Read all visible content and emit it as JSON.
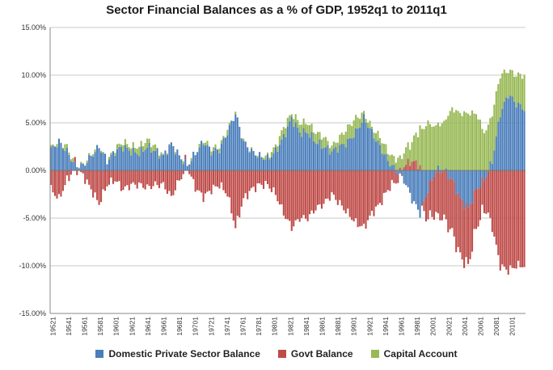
{
  "chart_data": {
    "type": "bar",
    "stacked": true,
    "title": "Sector Financial Balances as a % of GDP, 1952q1 to 2011q1",
    "ylim": [
      -15,
      15
    ],
    "yticks": [
      15,
      10,
      5,
      0,
      -5,
      -10,
      -15
    ],
    "ytick_labels": [
      "15.00%",
      "10.00%",
      "5.00%",
      "0.00%",
      "-5.00%",
      "-10.00%",
      "-15.00%"
    ],
    "x_start": "1952q1",
    "x_end": "2011q1",
    "xtick_labels": [
      "19521",
      "19541",
      "19561",
      "19581",
      "19601",
      "19621",
      "19641",
      "19661",
      "19681",
      "19701",
      "19721",
      "19741",
      "19761",
      "19781",
      "19801",
      "19821",
      "19841",
      "19861",
      "19881",
      "19901",
      "19921",
      "19941",
      "19961",
      "19981",
      "20001",
      "20021",
      "20041",
      "20061",
      "20081",
      "20101"
    ],
    "grid": true,
    "legend_position": "bottom",
    "series": [
      {
        "name": "Domestic Private Sector Balance",
        "color": "#4a7ebb"
      },
      {
        "name": "Govt Balance",
        "color": "#be4b48"
      },
      {
        "name": "Capital Account",
        "color": "#98b954"
      }
    ],
    "annual_private": [
      2.2,
      3.0,
      2.0,
      0.5,
      0.5,
      1.5,
      2.5,
      1.0,
      2.0,
      2.5,
      2.0,
      1.8,
      2.5,
      2.0,
      1.5,
      2.8,
      1.5,
      0.5,
      1.8,
      3.0,
      2.0,
      2.2,
      4.0,
      6.0,
      3.0,
      2.0,
      1.5,
      1.2,
      2.0,
      3.5,
      5.5,
      4.0,
      4.0,
      3.0,
      2.5,
      2.0,
      2.5,
      3.0,
      4.0,
      5.5,
      4.0,
      2.5,
      1.0,
      0.0,
      -1.0,
      -3.0,
      -4.5,
      -2.0,
      0.0,
      0.0,
      -1.0,
      -3.0,
      -4.0,
      -2.0,
      -1.0,
      1.0,
      6.0,
      8.0,
      7.0,
      6.5
    ],
    "annual_govt": [
      -2.0,
      -3.0,
      -1.0,
      0.2,
      -0.5,
      -2.0,
      -3.5,
      -1.5,
      -1.0,
      -2.0,
      -1.5,
      -1.5,
      -1.8,
      -1.5,
      -1.5,
      -2.8,
      -1.0,
      0.3,
      -1.8,
      -2.8,
      -2.0,
      -1.5,
      -2.5,
      -6.0,
      -3.0,
      -2.0,
      -1.5,
      -1.5,
      -2.5,
      -4.5,
      -6.0,
      -5.0,
      -5.0,
      -4.0,
      -3.5,
      -2.5,
      -3.5,
      -4.5,
      -5.5,
      -6.0,
      -4.5,
      -3.5,
      -2.0,
      -1.0,
      0.5,
      1.0,
      0.5,
      -3.0,
      -4.5,
      -5.0,
      -5.5,
      -6.0,
      -6.0,
      -4.0,
      -3.0,
      -6.0,
      -10.0,
      -10.5,
      -10.0,
      -10.0
    ],
    "annual_capital": [
      0.2,
      0.0,
      0.5,
      0.0,
      0.0,
      0.2,
      0.0,
      0.0,
      0.3,
      0.5,
      0.5,
      0.7,
      0.7,
      0.5,
      0.0,
      0.0,
      0.0,
      0.0,
      0.0,
      0.2,
      0.3,
      0.3,
      0.3,
      0.0,
      0.0,
      0.0,
      0.0,
      0.3,
      0.5,
      1.0,
      0.5,
      1.0,
      1.0,
      1.0,
      1.0,
      0.5,
      1.0,
      1.5,
      1.5,
      0.5,
      0.5,
      1.0,
      1.0,
      1.0,
      1.5,
      2.0,
      4.0,
      5.0,
      4.5,
      5.0,
      6.5,
      6.0,
      6.0,
      6.0,
      4.0,
      5.0,
      4.0,
      2.5,
      3.0,
      3.5
    ]
  }
}
